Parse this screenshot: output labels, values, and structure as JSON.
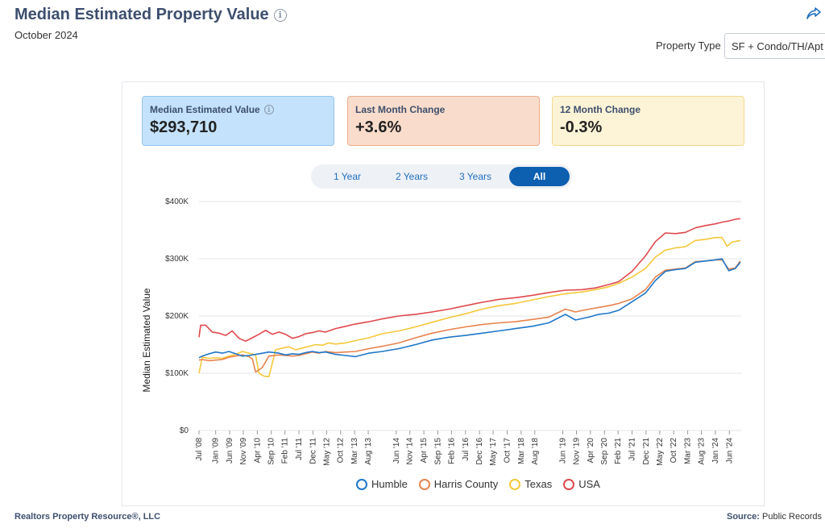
{
  "header": {
    "title": "Median Estimated Property Value",
    "subtitle": "October 2024",
    "property_type_label": "Property Type",
    "property_type_value": "SF + Condo/TH/Apt"
  },
  "stats": [
    {
      "label": "Median Estimated Value",
      "value": "$293,710"
    },
    {
      "label": "Last Month Change",
      "value": "+3.6%"
    },
    {
      "label": "12 Month Change",
      "value": "-0.3%"
    }
  ],
  "ranges": [
    "1 Year",
    "2 Years",
    "3 Years",
    "All"
  ],
  "active_range": "All",
  "footer": {
    "left": "Realtors Property Resource®, LLC",
    "source_label": "Source:",
    "source_value": "Public Records"
  },
  "colors": {
    "humble": "#1f77c9",
    "harris": "#e8834e",
    "texas": "#f5c83a",
    "usa": "#e0484c"
  },
  "chart_data": {
    "type": "line",
    "title": "Median Estimated Property Value",
    "xlabel": "",
    "ylabel": "Median Estimated Value",
    "ylim": [
      0,
      400000
    ],
    "yticks": [
      0,
      100000,
      200000,
      300000,
      400000
    ],
    "ytick_labels": [
      "$0",
      "$100K",
      "$200K",
      "$300K",
      "$400K"
    ],
    "xlim": [
      2008.5,
      2024.8
    ],
    "xtick_labels": [
      "Jul '08",
      "Jan '09",
      "Jun '09",
      "Nov '09",
      "Apr '10",
      "Sep '10",
      "Feb '11",
      "Jul '11",
      "Dec '11",
      "May '12",
      "Oct '12",
      "Mar '13",
      "Aug '13",
      "Jun '14",
      "Nov '14",
      "Apr '15",
      "Sep '15",
      "Feb '16",
      "Jul '16",
      "Dec '16",
      "May '17",
      "Oct '17",
      "Mar '18",
      "Aug '18",
      "Jun '19",
      "Nov '19",
      "Apr '20",
      "Sep '20",
      "Feb '21",
      "Jul '21",
      "Dec '21",
      "May '22",
      "Oct '22",
      "Mar '23",
      "Aug '23",
      "Jan '24",
      "Jun '24"
    ],
    "xtick_values": [
      2008.5,
      2009.0,
      2009.42,
      2009.83,
      2010.25,
      2010.67,
      2011.08,
      2011.5,
      2011.92,
      2012.33,
      2012.75,
      2013.17,
      2013.58,
      2014.42,
      2014.83,
      2015.25,
      2015.67,
      2016.08,
      2016.5,
      2016.92,
      2017.33,
      2017.75,
      2018.17,
      2018.58,
      2019.42,
      2019.83,
      2020.25,
      2020.67,
      2021.08,
      2021.5,
      2021.92,
      2022.33,
      2022.75,
      2023.17,
      2023.58,
      2024.0,
      2024.42
    ],
    "series": [
      {
        "name": "Humble",
        "x": [
          2008.5,
          2008.6,
          2008.8,
          2009.0,
          2009.2,
          2009.4,
          2009.6,
          2009.8,
          2010.0,
          2010.3,
          2010.6,
          2010.9,
          2011.1,
          2011.3,
          2011.5,
          2011.7,
          2011.9,
          2012.1,
          2012.3,
          2012.6,
          2012.9,
          2013.2,
          2013.6,
          2014.0,
          2014.5,
          2015.0,
          2015.5,
          2016.0,
          2016.5,
          2017.0,
          2017.5,
          2018.0,
          2018.5,
          2019.0,
          2019.5,
          2019.8,
          2020.2,
          2020.5,
          2020.8,
          2021.1,
          2021.5,
          2021.9,
          2022.2,
          2022.5,
          2022.8,
          2023.1,
          2023.4,
          2023.7,
          2024.0,
          2024.2,
          2024.4,
          2024.6,
          2024.75
        ],
        "values": [
          127000,
          130000,
          134000,
          137000,
          135000,
          138000,
          134000,
          130000,
          131000,
          134000,
          137000,
          135000,
          132000,
          134000,
          133000,
          136000,
          138000,
          136000,
          137000,
          133000,
          131000,
          129000,
          135000,
          138000,
          143000,
          150000,
          158000,
          163000,
          166000,
          170000,
          174000,
          178000,
          182000,
          188000,
          203000,
          193000,
          198000,
          203000,
          205000,
          210000,
          225000,
          240000,
          262000,
          278000,
          281000,
          283000,
          294000,
          296000,
          298000,
          300000,
          279000,
          283000,
          294000
        ]
      },
      {
        "name": "Harris County",
        "x": [
          2008.5,
          2008.6,
          2008.8,
          2009.0,
          2009.2,
          2009.4,
          2009.6,
          2009.8,
          2010.0,
          2010.1,
          2010.2,
          2010.4,
          2010.6,
          2010.9,
          2011.1,
          2011.3,
          2011.5,
          2011.7,
          2011.9,
          2012.1,
          2012.3,
          2012.6,
          2012.9,
          2013.2,
          2013.6,
          2014.0,
          2014.5,
          2015.0,
          2015.5,
          2016.0,
          2016.5,
          2017.0,
          2017.5,
          2018.0,
          2018.5,
          2019.0,
          2019.5,
          2019.8,
          2020.2,
          2020.5,
          2020.8,
          2021.1,
          2021.5,
          2021.9,
          2022.2,
          2022.5,
          2022.8,
          2023.1,
          2023.4,
          2023.7,
          2024.0,
          2024.2,
          2024.4,
          2024.6,
          2024.75
        ],
        "values": [
          123000,
          124000,
          122000,
          123000,
          124000,
          128000,
          130000,
          132000,
          129000,
          125000,
          102000,
          110000,
          130000,
          132000,
          131000,
          130000,
          131000,
          134000,
          137000,
          135000,
          138000,
          136000,
          137000,
          138000,
          143000,
          147000,
          153000,
          162000,
          170000,
          176000,
          181000,
          185000,
          188000,
          190000,
          194000,
          198000,
          212000,
          207000,
          212000,
          215000,
          218000,
          222000,
          230000,
          246000,
          268000,
          280000,
          282000,
          284000,
          295000,
          296000,
          298000,
          298000,
          282000,
          284000,
          296000
        ]
      },
      {
        "name": "Texas",
        "x": [
          2008.5,
          2008.6,
          2008.8,
          2009.0,
          2009.2,
          2009.4,
          2009.6,
          2009.8,
          2010.0,
          2010.2,
          2010.3,
          2010.45,
          2010.6,
          2010.8,
          2011.0,
          2011.2,
          2011.4,
          2011.6,
          2011.8,
          2012.0,
          2012.2,
          2012.4,
          2012.6,
          2012.9,
          2013.2,
          2013.6,
          2014.0,
          2014.5,
          2015.0,
          2015.5,
          2016.0,
          2016.5,
          2017.0,
          2017.5,
          2018.0,
          2018.5,
          2019.0,
          2019.5,
          2020.0,
          2020.4,
          2020.8,
          2021.1,
          2021.5,
          2021.9,
          2022.2,
          2022.5,
          2022.8,
          2023.1,
          2023.4,
          2023.7,
          2024.0,
          2024.2,
          2024.35,
          2024.5,
          2024.75
        ],
        "values": [
          100000,
          128000,
          126000,
          127000,
          126000,
          130000,
          133000,
          138000,
          135000,
          132000,
          100000,
          95000,
          94000,
          141000,
          144000,
          146000,
          141000,
          144000,
          147000,
          150000,
          149000,
          153000,
          151000,
          153000,
          157000,
          162000,
          169000,
          174000,
          181000,
          189000,
          197000,
          204000,
          212000,
          218000,
          222000,
          228000,
          234000,
          239000,
          242000,
          246000,
          251000,
          257000,
          268000,
          283000,
          303000,
          315000,
          319000,
          321000,
          332000,
          334000,
          337000,
          337000,
          322000,
          329000,
          332000
        ]
      },
      {
        "name": "USA",
        "x": [
          2008.5,
          2008.55,
          2008.7,
          2008.9,
          2009.1,
          2009.3,
          2009.5,
          2009.7,
          2009.9,
          2010.1,
          2010.3,
          2010.5,
          2010.7,
          2010.9,
          2011.1,
          2011.3,
          2011.5,
          2011.7,
          2011.9,
          2012.1,
          2012.3,
          2012.6,
          2012.9,
          2013.2,
          2013.6,
          2014.0,
          2014.5,
          2015.0,
          2015.5,
          2016.0,
          2016.5,
          2017.0,
          2017.5,
          2018.0,
          2018.5,
          2019.0,
          2019.5,
          2020.0,
          2020.4,
          2020.8,
          2021.1,
          2021.5,
          2021.9,
          2022.2,
          2022.5,
          2022.8,
          2023.1,
          2023.4,
          2023.7,
          2024.0,
          2024.2,
          2024.4,
          2024.6,
          2024.75
        ],
        "values": [
          163000,
          184000,
          184000,
          172000,
          170000,
          166000,
          174000,
          161000,
          156000,
          162000,
          168000,
          175000,
          168000,
          172000,
          168000,
          161000,
          164000,
          169000,
          171000,
          174000,
          172000,
          178000,
          182000,
          186000,
          190000,
          195000,
          200000,
          203000,
          207000,
          212000,
          218000,
          224000,
          229000,
          232000,
          236000,
          241000,
          245000,
          246000,
          249000,
          255000,
          260000,
          278000,
          305000,
          330000,
          345000,
          344000,
          346000,
          354000,
          358000,
          361000,
          364000,
          366000,
          369000,
          370000
        ]
      }
    ],
    "legend": [
      "Humble",
      "Harris County",
      "Texas",
      "USA"
    ]
  }
}
